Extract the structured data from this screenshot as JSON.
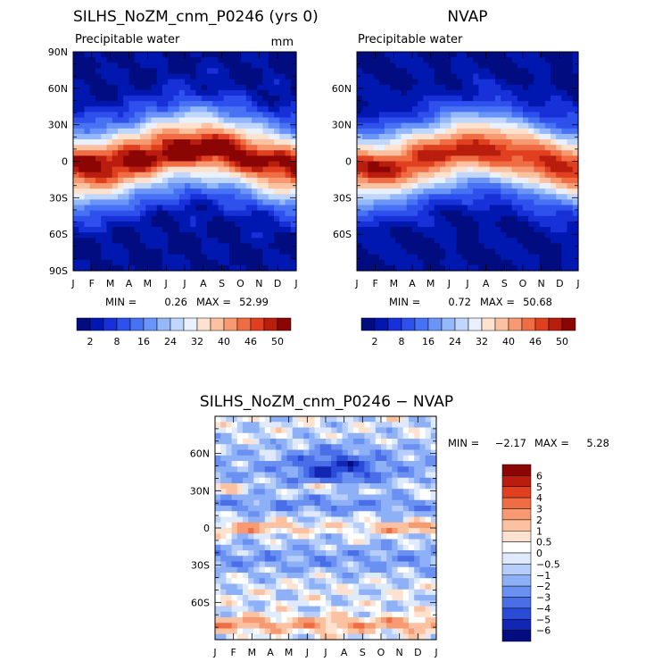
{
  "panels": [
    {
      "title": "SILHS_NoZM_cnm_P0246 (yrs 0)",
      "subtitle": "Precipitable water",
      "units": "mm",
      "min_label": "MIN =",
      "min_value": "0.26",
      "max_label": "MAX =",
      "max_value": "52.99",
      "show_poles": true
    },
    {
      "title": "NVAP",
      "subtitle": "Precipitable water",
      "units": "",
      "min_label": "MIN =",
      "min_value": "0.72",
      "max_label": "MAX =",
      "max_value": "50.68",
      "show_poles": false
    }
  ],
  "diff_panel": {
    "title": "SILHS_NoZM_cnm_P0246 − NVAP",
    "min_label": "MIN =",
    "min_value": "−2.17",
    "max_label": "MAX =",
    "max_value": "5.28"
  },
  "months": [
    "J",
    "F",
    "M",
    "A",
    "M",
    "J",
    "J",
    "A",
    "S",
    "O",
    "N",
    "D",
    "J"
  ],
  "lat_ticks_full": [
    "90N",
    "60N",
    "30N",
    "0",
    "30S",
    "60S",
    "90S"
  ],
  "lat_ticks_inner": [
    "60N",
    "30N",
    "0",
    "30S",
    "60S"
  ],
  "pw_levels": [
    "2",
    "8",
    "16",
    "24",
    "32",
    "40",
    "46",
    "50"
  ],
  "pw_colors": [
    "#000c80",
    "#0018b0",
    "#1830d8",
    "#2e50ec",
    "#4872f4",
    "#6a94f8",
    "#94b8fa",
    "#c0d6fb",
    "#e8f1fd",
    "#fde2d0",
    "#fbc1a1",
    "#f79a71",
    "#f06d44",
    "#e0401f",
    "#b81d0d",
    "#8c0505"
  ],
  "diff_levels": [
    "6",
    "5",
    "4",
    "3",
    "2",
    "1",
    "0.5",
    "0",
    "−0.5",
    "−1",
    "−2",
    "−3",
    "−4",
    "−5",
    "−6"
  ],
  "diff_colors": [
    "#8c0505",
    "#b81d0d",
    "#e0401f",
    "#f06d44",
    "#f79a71",
    "#fbc1a1",
    "#fde2d0",
    "#ffffff",
    "#dfeafc",
    "#b7cefa",
    "#8eb0f7",
    "#6a90f2",
    "#4a6ee8",
    "#2a4ad8",
    "#1226b4",
    "#000c80"
  ],
  "chart_data": [
    {
      "type": "heatmap",
      "title": "SILHS_NoZM_cnm_P0246 (yrs 0)",
      "subtitle": "Precipitable water",
      "units": "mm",
      "x": [
        "J",
        "F",
        "M",
        "A",
        "M",
        "J",
        "J",
        "A",
        "S",
        "O",
        "N",
        "D",
        "J"
      ],
      "y": [
        "90N",
        "60N",
        "30N",
        "0",
        "30S",
        "60S",
        "90S"
      ],
      "min": 0.26,
      "max": 52.99,
      "levels": [
        2,
        8,
        16,
        24,
        32,
        40,
        46,
        50
      ]
    },
    {
      "type": "heatmap",
      "title": "NVAP",
      "subtitle": "Precipitable water",
      "x": [
        "J",
        "F",
        "M",
        "A",
        "M",
        "J",
        "J",
        "A",
        "S",
        "O",
        "N",
        "D",
        "J"
      ],
      "y": [
        "60N",
        "30N",
        "0",
        "30S",
        "60S"
      ],
      "min": 0.72,
      "max": 50.68,
      "levels": [
        2,
        8,
        16,
        24,
        32,
        40,
        46,
        50
      ]
    },
    {
      "type": "heatmap",
      "title": "SILHS_NoZM_cnm_P0246 − NVAP",
      "x": [
        "J",
        "F",
        "M",
        "A",
        "M",
        "J",
        "J",
        "A",
        "S",
        "O",
        "N",
        "D",
        "J"
      ],
      "y": [
        "60N",
        "30N",
        "0",
        "30S",
        "60S"
      ],
      "min": -2.17,
      "max": 5.28,
      "levels": [
        -6,
        -5,
        -4,
        -3,
        -2,
        -1,
        -0.5,
        0,
        0.5,
        1,
        2,
        3,
        4,
        5,
        6
      ]
    }
  ]
}
